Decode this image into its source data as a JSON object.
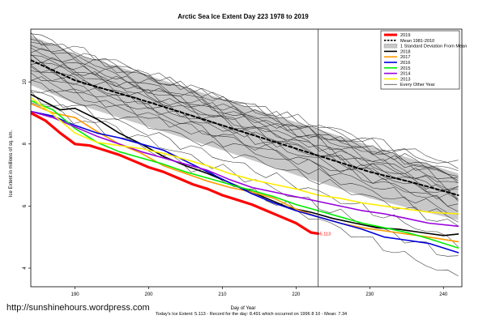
{
  "chart_data": {
    "type": "line",
    "title": "Arctic Sea Ice Extent Day 223 1978 to 2019",
    "xlabel": "Day of Year",
    "ylabel": "Ice Extent in millions of sq. km.",
    "footer": "Today's Ice Extent: 5.113  - Record for the day: 8.491 which occurred on 1996 8 10  - Mean: 7.34",
    "current_value_label": "5.113",
    "xlim": [
      184,
      242.5
    ],
    "ylim": [
      3.4,
      11.7
    ],
    "x_ticks": [
      "190",
      "200",
      "210",
      "220",
      "230",
      "240"
    ],
    "y_ticks": [
      "4",
      "6",
      "8",
      "10"
    ],
    "current_day": 223,
    "legend_position": "top-right",
    "legend": [
      {
        "label": "2019",
        "color": "#ff0000",
        "style": "thick"
      },
      {
        "label": "Mean 1981-2010",
        "color": "#000000",
        "style": "dashed"
      },
      {
        "label": "1 Standard Deviation From Mean",
        "color": "#c8c8c8",
        "style": "band"
      },
      {
        "label": "2018",
        "color": "#000000",
        "style": "solid"
      },
      {
        "label": "2017",
        "color": "#ff9900",
        "style": "solid"
      },
      {
        "label": "2016",
        "color": "#0000dd",
        "style": "solid"
      },
      {
        "label": "2015",
        "color": "#00ee00",
        "style": "solid"
      },
      {
        "label": "2014",
        "color": "#9900dd",
        "style": "solid"
      },
      {
        "label": "2013",
        "color": "#ffee00",
        "style": "solid"
      },
      {
        "label": "Every Other Year",
        "color": "#000000",
        "style": "thin"
      }
    ],
    "std_band": {
      "x": [
        184,
        190,
        200,
        210,
        220,
        230,
        242
      ],
      "upper": [
        11.5,
        10.9,
        10.2,
        9.45,
        8.7,
        7.95,
        7.05
      ],
      "lower": [
        9.9,
        9.3,
        8.55,
        7.8,
        7.0,
        6.25,
        5.55
      ]
    },
    "series": [
      {
        "name": "2019",
        "color": "#ff0000",
        "width": 3.2,
        "x": [
          184,
          186,
          188,
          190,
          192,
          194,
          196,
          198,
          200,
          202,
          204,
          206,
          208,
          210,
          212,
          214,
          216,
          218,
          220,
          222,
          223
        ],
        "y": [
          9.0,
          8.75,
          8.35,
          8.0,
          7.95,
          7.8,
          7.65,
          7.45,
          7.25,
          7.1,
          6.9,
          6.7,
          6.55,
          6.35,
          6.2,
          6.05,
          5.85,
          5.65,
          5.45,
          5.15,
          5.113
        ]
      },
      {
        "name": "Mean 1981-2010",
        "color": "#000000",
        "width": 2,
        "dash": "4,3",
        "x": [
          184,
          190,
          200,
          210,
          220,
          230,
          236,
          242
        ],
        "y": [
          10.7,
          10.05,
          9.35,
          8.6,
          7.85,
          7.1,
          6.75,
          6.35
        ]
      },
      {
        "name": "2018",
        "color": "#000000",
        "width": 1.6,
        "x": [
          184,
          188,
          190,
          193,
          196,
          199,
          202,
          205,
          208,
          210,
          213,
          216,
          219,
          222,
          225,
          228,
          231,
          234,
          237,
          240,
          242
        ],
        "y": [
          9.6,
          9.1,
          9.15,
          8.8,
          8.35,
          8.0,
          7.6,
          7.3,
          7.05,
          6.85,
          6.55,
          6.25,
          5.95,
          5.8,
          5.6,
          5.45,
          5.3,
          5.25,
          5.15,
          5.05,
          5.1
        ]
      },
      {
        "name": "2017",
        "color": "#ff9900",
        "width": 1.6,
        "x": [
          184,
          187,
          190,
          193,
          196,
          199,
          202,
          205,
          208,
          211,
          214,
          217,
          220,
          223,
          226,
          229,
          232,
          235,
          238,
          242
        ],
        "y": [
          9.3,
          9.0,
          8.85,
          8.4,
          8.0,
          7.7,
          7.3,
          7.05,
          6.8,
          6.6,
          6.45,
          6.25,
          5.9,
          5.65,
          5.45,
          5.3,
          5.2,
          5.1,
          5.0,
          4.85
        ]
      },
      {
        "name": "2016",
        "color": "#0000dd",
        "width": 1.6,
        "x": [
          184,
          187,
          190,
          193,
          196,
          199,
          202,
          205,
          208,
          211,
          214,
          217,
          220,
          223,
          226,
          229,
          232,
          235,
          238,
          240,
          242
        ],
        "y": [
          9.05,
          8.9,
          8.6,
          8.35,
          8.2,
          8.0,
          7.8,
          7.45,
          7.1,
          6.75,
          6.4,
          6.1,
          5.85,
          5.65,
          5.45,
          5.25,
          5.0,
          4.9,
          4.8,
          4.65,
          4.5
        ]
      },
      {
        "name": "2015",
        "color": "#00ee00",
        "width": 1.6,
        "x": [
          184,
          187,
          190,
          193,
          196,
          199,
          202,
          205,
          208,
          211,
          214,
          217,
          220,
          223,
          226,
          229,
          232,
          235,
          238,
          242
        ],
        "y": [
          9.4,
          9.1,
          8.5,
          8.05,
          7.75,
          7.55,
          7.35,
          7.1,
          6.9,
          6.7,
          6.5,
          6.3,
          6.05,
          5.85,
          5.65,
          5.45,
          5.3,
          5.15,
          4.95,
          4.65
        ]
      },
      {
        "name": "2014",
        "color": "#9900dd",
        "width": 1.6,
        "x": [
          184,
          187,
          190,
          193,
          196,
          199,
          202,
          205,
          208,
          211,
          214,
          217,
          220,
          223,
          226,
          229,
          232,
          235,
          238,
          242
        ],
        "y": [
          9.05,
          8.85,
          8.55,
          8.25,
          8.0,
          7.75,
          7.55,
          7.35,
          7.15,
          6.85,
          6.6,
          6.45,
          6.3,
          6.15,
          6.0,
          5.85,
          5.75,
          5.6,
          5.45,
          5.35
        ]
      },
      {
        "name": "2013",
        "color": "#ffee00",
        "width": 1.6,
        "x": [
          184,
          187,
          190,
          193,
          196,
          199,
          202,
          205,
          208,
          211,
          214,
          217,
          220,
          223,
          226,
          229,
          232,
          235,
          238,
          242
        ],
        "y": [
          9.5,
          8.95,
          8.35,
          8.05,
          7.95,
          7.85,
          7.7,
          7.5,
          7.3,
          7.05,
          6.85,
          6.7,
          6.55,
          6.35,
          6.25,
          6.1,
          6.0,
          5.9,
          5.8,
          5.75
        ]
      }
    ],
    "background_years": [
      {
        "start": 11.55,
        "end": 6.9
      },
      {
        "start": 11.45,
        "end": 6.8
      },
      {
        "start": 11.35,
        "end": 7.2
      },
      {
        "start": 11.3,
        "end": 6.55
      },
      {
        "start": 11.2,
        "end": 7.35
      },
      {
        "start": 11.1,
        "end": 6.35
      },
      {
        "start": 11.0,
        "end": 7.0
      },
      {
        "start": 10.9,
        "end": 6.15
      },
      {
        "start": 10.85,
        "end": 6.9
      },
      {
        "start": 10.75,
        "end": 6.5
      },
      {
        "start": 10.7,
        "end": 7.1
      },
      {
        "start": 10.6,
        "end": 5.95
      },
      {
        "start": 10.5,
        "end": 6.7
      },
      {
        "start": 10.45,
        "end": 6.25
      },
      {
        "start": 10.35,
        "end": 5.75
      },
      {
        "start": 10.25,
        "end": 6.45
      },
      {
        "start": 10.15,
        "end": 5.55
      },
      {
        "start": 10.0,
        "end": 6.05
      },
      {
        "start": 9.85,
        "end": 5.35
      },
      {
        "start": 9.7,
        "end": 4.85
      },
      {
        "start": 9.55,
        "end": 4.3
      },
      {
        "start": 9.4,
        "end": 3.7
      }
    ]
  },
  "watermark": "http://sunshinehours.wordpress.com"
}
